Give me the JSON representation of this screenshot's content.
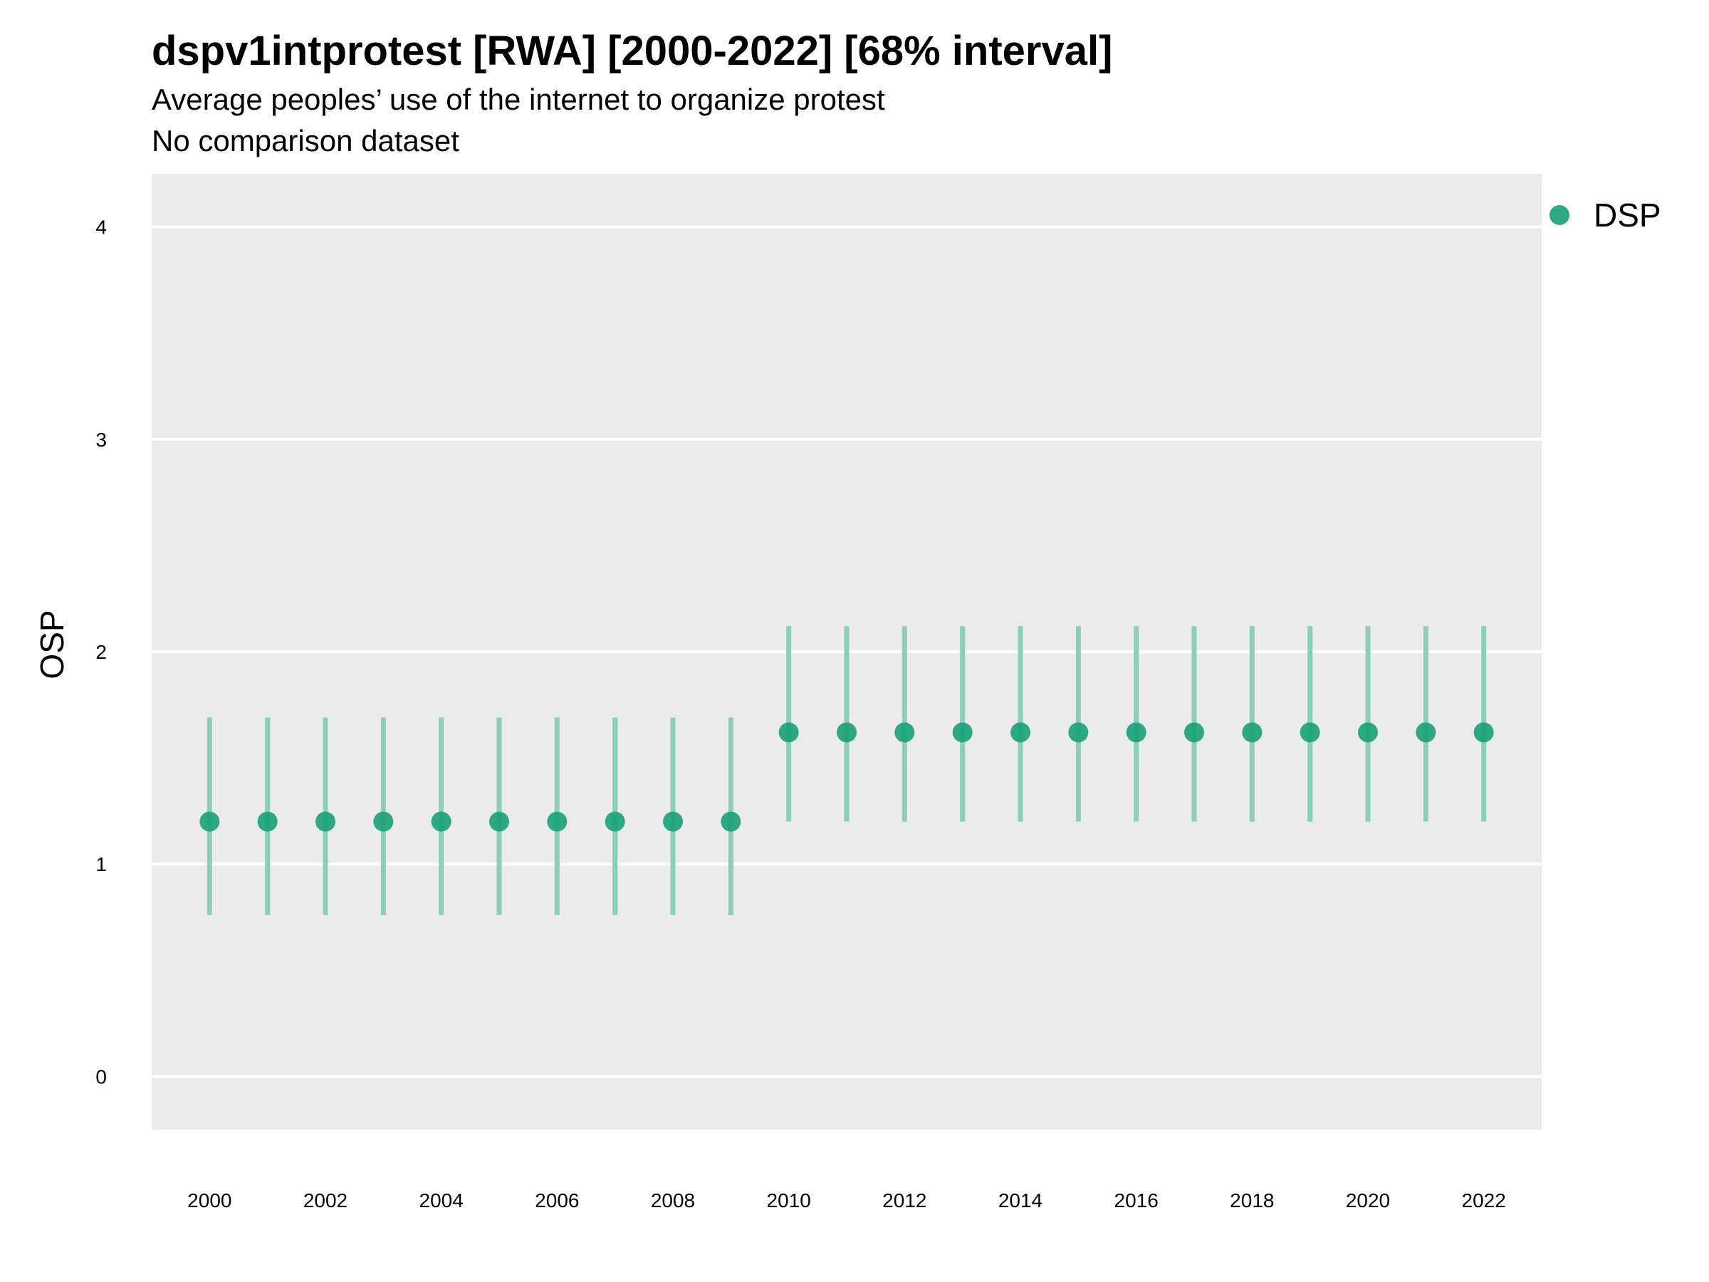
{
  "chart_data": {
    "type": "scatter",
    "title": "dspv1intprotest [RWA] [2000-2022] [68% interval]",
    "subtitle": "Average peoples’ use of the internet to organize protest",
    "caption": "No comparison dataset",
    "xlabel": "",
    "ylabel": "OSP",
    "ylim": [
      -0.25,
      4.25
    ],
    "yticks": [
      "0",
      "1",
      "2",
      "3",
      "4"
    ],
    "xticks": [
      "2000",
      "2002",
      "2004",
      "2006",
      "2008",
      "2010",
      "2012",
      "2014",
      "2016",
      "2018",
      "2020",
      "2022"
    ],
    "grid": true,
    "legend_position": "right",
    "colors": {
      "point": "#1aa37a",
      "interval": "#8ccfb8",
      "panel": "#ebebeb",
      "grid": "#ffffff"
    },
    "series": [
      {
        "name": "DSP",
        "x": [
          2000,
          2001,
          2002,
          2003,
          2004,
          2005,
          2006,
          2007,
          2008,
          2009,
          2010,
          2011,
          2012,
          2013,
          2014,
          2015,
          2016,
          2017,
          2018,
          2019,
          2020,
          2021,
          2022
        ],
        "y": [
          1.2,
          1.2,
          1.2,
          1.2,
          1.2,
          1.2,
          1.2,
          1.2,
          1.2,
          1.2,
          1.62,
          1.62,
          1.62,
          1.62,
          1.62,
          1.62,
          1.62,
          1.62,
          1.62,
          1.62,
          1.62,
          1.62,
          1.62
        ],
        "lower": [
          0.76,
          0.76,
          0.76,
          0.76,
          0.76,
          0.76,
          0.76,
          0.76,
          0.76,
          0.76,
          1.2,
          1.2,
          1.2,
          1.2,
          1.2,
          1.2,
          1.2,
          1.2,
          1.2,
          1.2,
          1.2,
          1.2,
          1.2
        ],
        "upper": [
          1.69,
          1.69,
          1.69,
          1.69,
          1.69,
          1.69,
          1.69,
          1.69,
          1.69,
          1.69,
          2.12,
          2.12,
          2.12,
          2.12,
          2.12,
          2.12,
          2.12,
          2.12,
          2.12,
          2.12,
          2.12,
          2.12,
          2.12
        ]
      }
    ]
  }
}
